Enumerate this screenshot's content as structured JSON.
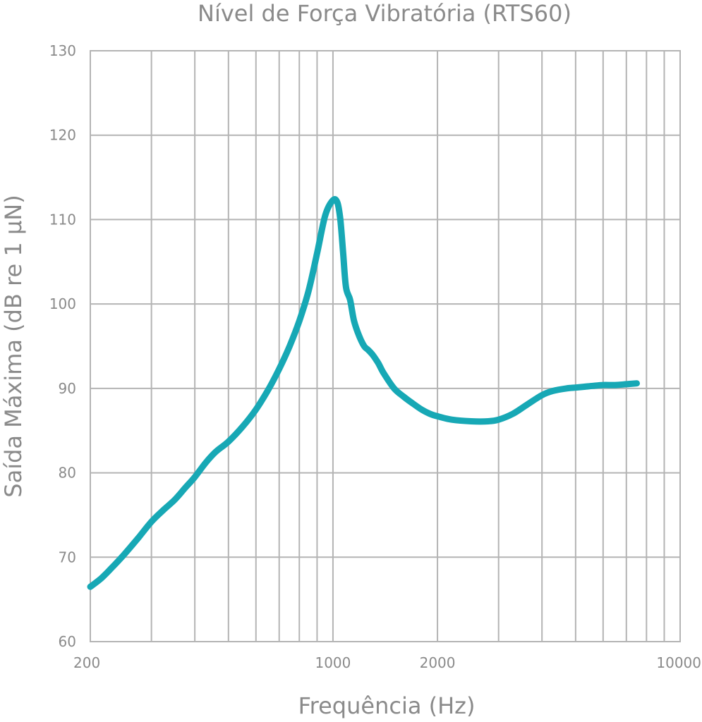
{
  "chart_data": {
    "type": "line",
    "title": "Nível de Força Vibratória (RTS60)",
    "xlabel": "Frequência (Hz)",
    "ylabel": "Saída Máxima (dB re 1 µN)",
    "x_scale": "log",
    "xlim": [
      200,
      10000
    ],
    "ylim": [
      60,
      130
    ],
    "x_tick_labels": [
      "200",
      "1000",
      "2000",
      "10000"
    ],
    "x_tick_values": [
      200,
      1000,
      2000,
      10000
    ],
    "x_gridlines": [
      200,
      300,
      400,
      500,
      600,
      700,
      800,
      900,
      1000,
      2000,
      3000,
      4000,
      5000,
      6000,
      7000,
      8000,
      9000,
      10000
    ],
    "y_ticks": [
      60,
      70,
      80,
      90,
      100,
      110,
      120,
      130
    ],
    "grid": true,
    "line_color": "#17a8b5",
    "series": [
      {
        "x": [
          200,
          215,
          230,
          250,
          275,
          300,
          325,
          350,
          375,
          400,
          430,
          460,
          500,
          550,
          600,
          650,
          700,
          750,
          800,
          850,
          900,
          950,
          1000,
          1030,
          1050,
          1070,
          1090,
          1120,
          1150,
          1190,
          1230,
          1260,
          1300,
          1350,
          1400,
          1500,
          1600,
          1700,
          1800,
          1900,
          2000,
          2200,
          2500,
          2800,
          3000,
          3300,
          3600,
          4000,
          4300,
          4700,
          5000,
          5300,
          5600,
          6000,
          6500,
          7000,
          7500
        ],
        "y": [
          66.5,
          67.5,
          68.7,
          70.3,
          72.3,
          74.2,
          75.6,
          76.8,
          78.2,
          79.5,
          81.2,
          82.5,
          83.7,
          85.5,
          87.5,
          89.8,
          92.3,
          95.0,
          98.0,
          101.5,
          106.0,
          110.5,
          112.3,
          112.0,
          110.0,
          106.0,
          102.0,
          100.5,
          98.0,
          96.2,
          95.0,
          94.6,
          94.0,
          93.0,
          91.8,
          90.0,
          89.0,
          88.2,
          87.5,
          87.0,
          86.7,
          86.3,
          86.1,
          86.1,
          86.3,
          87.0,
          88.0,
          89.2,
          89.7,
          90.0,
          90.1,
          90.2,
          90.3,
          90.4,
          90.4,
          90.5,
          90.6
        ]
      }
    ]
  }
}
